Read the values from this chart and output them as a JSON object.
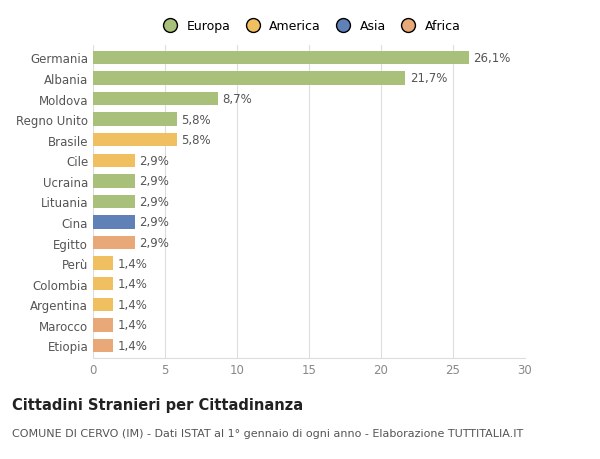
{
  "categories": [
    "Germania",
    "Albania",
    "Moldova",
    "Regno Unito",
    "Brasile",
    "Cile",
    "Ucraina",
    "Lituania",
    "Cina",
    "Egitto",
    "Perù",
    "Colombia",
    "Argentina",
    "Marocco",
    "Etiopia"
  ],
  "values": [
    26.1,
    21.7,
    8.7,
    5.8,
    5.8,
    2.9,
    2.9,
    2.9,
    2.9,
    2.9,
    1.4,
    1.4,
    1.4,
    1.4,
    1.4
  ],
  "labels": [
    "26,1%",
    "21,7%",
    "8,7%",
    "5,8%",
    "5,8%",
    "2,9%",
    "2,9%",
    "2,9%",
    "2,9%",
    "2,9%",
    "1,4%",
    "1,4%",
    "1,4%",
    "1,4%",
    "1,4%"
  ],
  "colors": [
    "#a8c07a",
    "#a8c07a",
    "#a8c07a",
    "#a8c07a",
    "#f0c060",
    "#f0c060",
    "#a8c07a",
    "#a8c07a",
    "#6080b8",
    "#e8a878",
    "#f0c060",
    "#f0c060",
    "#f0c060",
    "#e8a878",
    "#e8a878"
  ],
  "legend_labels": [
    "Europa",
    "America",
    "Asia",
    "Africa"
  ],
  "legend_colors": [
    "#a8c07a",
    "#f0c060",
    "#6080b8",
    "#e8a878"
  ],
  "title": "Cittadini Stranieri per Cittadinanza",
  "subtitle": "COMUNE DI CERVO (IM) - Dati ISTAT al 1° gennaio di ogni anno - Elaborazione TUTTITALIA.IT",
  "xlim": [
    0,
    30
  ],
  "xticks": [
    0,
    5,
    10,
    15,
    20,
    25,
    30
  ],
  "background_color": "#ffffff",
  "grid_color": "#dddddd",
  "bar_height": 0.65,
  "label_fontsize": 8.5,
  "tick_fontsize": 8.5,
  "title_fontsize": 10.5,
  "subtitle_fontsize": 8
}
